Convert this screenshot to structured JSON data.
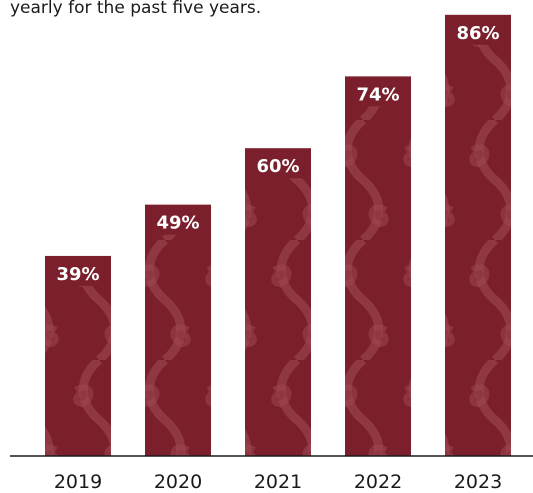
{
  "caption_fragment": "yearly for the past five years.",
  "colors": {
    "bar": "#7a1f2b",
    "pattern": "#a04a55",
    "axis": "#1a1a1a",
    "label": "#ffffff"
  },
  "chart_data": {
    "type": "bar",
    "categories": [
      "2019",
      "2020",
      "2021",
      "2022",
      "2023"
    ],
    "values": [
      39,
      49,
      60,
      74,
      86
    ],
    "value_labels": [
      "39%",
      "49%",
      "60%",
      "74%",
      "86%"
    ],
    "ylim": [
      0,
      100
    ],
    "grid": false,
    "legend": "none"
  }
}
